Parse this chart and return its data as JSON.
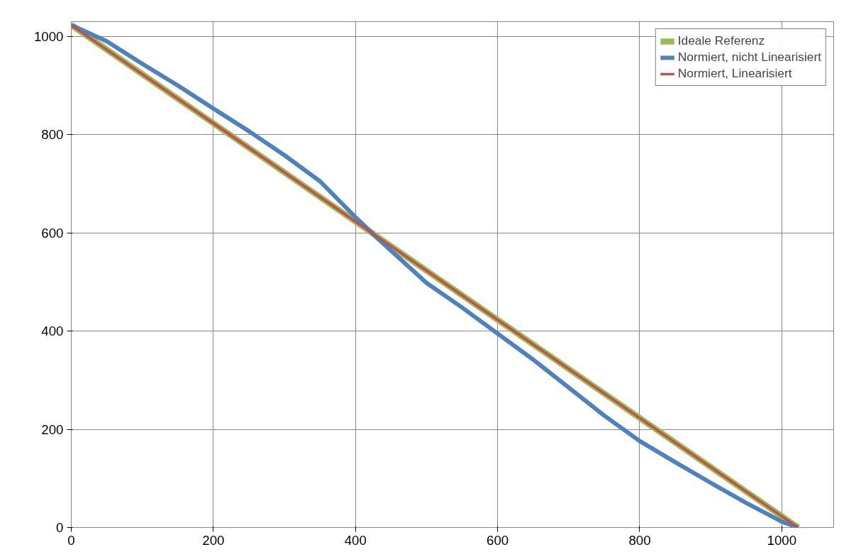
{
  "chart_data": {
    "type": "line",
    "xlim": [
      0,
      1073
    ],
    "ylim": [
      0,
      1030
    ],
    "xticks": [
      0,
      200,
      400,
      600,
      800,
      1000
    ],
    "yticks": [
      0,
      200,
      400,
      600,
      800,
      1000
    ],
    "grid": true,
    "legend": "top right",
    "marker": "none",
    "line_style": "solid",
    "series": [
      {
        "name": "Ideale Referenz",
        "color": "#9bbb59",
        "x": [
          0,
          1023
        ],
        "values": [
          1023,
          0
        ]
      },
      {
        "name": "Normiert, nicht Linearisiert",
        "color": "#4f81bd",
        "x": [
          0,
          50,
          100,
          150,
          200,
          250,
          300,
          350,
          400,
          430,
          500,
          550,
          600,
          650,
          700,
          750,
          800,
          850,
          900,
          950,
          1000,
          1023
        ],
        "values": [
          1023,
          990,
          944,
          900,
          853,
          807,
          758,
          705,
          632,
          590,
          498,
          448,
          395,
          342,
          285,
          228,
          176,
          133,
          91,
          50,
          12,
          0
        ]
      },
      {
        "name": "Normiert, Linearisiert",
        "color": "#c0504d",
        "x": [
          0,
          200,
          400,
          600,
          800,
          1000,
          1023
        ],
        "values": [
          1023,
          823,
          623,
          423,
          223,
          23,
          0
        ]
      }
    ]
  }
}
